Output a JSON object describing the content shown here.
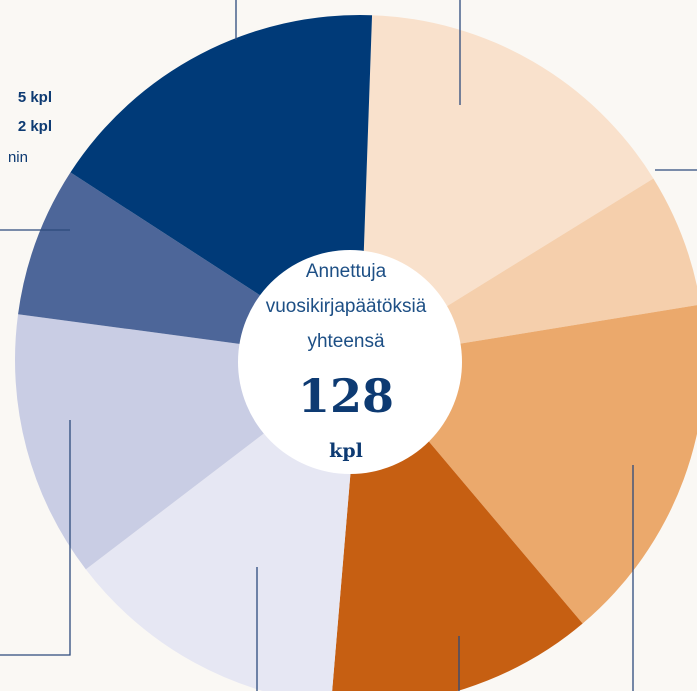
{
  "chart_data": {
    "type": "pie",
    "donut": true,
    "values": [
      20,
      8,
      21,
      16,
      17,
      16,
      9,
      21
    ],
    "colors": [
      "#f9e1cc",
      "#f5cfac",
      "#eba96c",
      "#c65f12",
      "#e6e7f3",
      "#c9cde4",
      "#4d6699",
      "#003a78"
    ],
    "annotations": [
      "5 kpl",
      "2 kpl",
      "nin"
    ],
    "center_lines": [
      "Annettuja",
      "vuosikirjapäätöksiä",
      "yhteensä"
    ],
    "total": "128",
    "unit": "kpl"
  }
}
